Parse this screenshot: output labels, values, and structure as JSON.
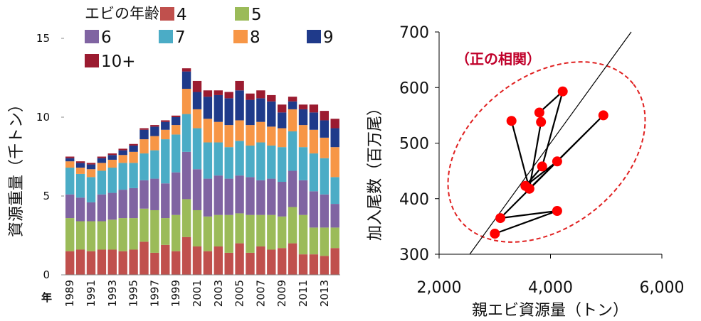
{
  "chart_data": [
    {
      "type": "bar",
      "stacked": true,
      "ylabel": "資源重量（千トン）",
      "xlabel": "年",
      "ylim": [
        0,
        15
      ],
      "yticks": [
        "0",
        "5",
        "10",
        "15"
      ],
      "legend_title": "エビの年齢",
      "categories": [
        "1989",
        "1990",
        "1991",
        "1992",
        "1993",
        "1994",
        "1995",
        "1996",
        "1997",
        "1998",
        "1999",
        "2000",
        "2001",
        "2002",
        "2003",
        "2004",
        "2005",
        "2006",
        "2007",
        "2008",
        "2009",
        "2010",
        "2011",
        "2012",
        "2013",
        "2014"
      ],
      "xtick_labels": [
        "1989",
        "1991",
        "1993",
        "1995",
        "1997",
        "1999",
        "2001",
        "2003",
        "2005",
        "2007",
        "2009",
        "2011",
        "2013"
      ],
      "series": [
        {
          "name": "4",
          "color": "#c0504d",
          "values": [
            1.5,
            1.6,
            1.5,
            1.6,
            1.6,
            1.5,
            1.6,
            2.1,
            1.4,
            1.9,
            1.5,
            2.4,
            1.8,
            1.5,
            1.8,
            1.4,
            2.0,
            1.4,
            1.8,
            1.6,
            1.7,
            2.0,
            1.3,
            1.3,
            1.2,
            1.7
          ]
        },
        {
          "name": "5",
          "color": "#9bbb59",
          "values": [
            2.1,
            1.8,
            1.9,
            1.8,
            1.9,
            2.1,
            2.0,
            2.1,
            2.7,
            1.7,
            2.3,
            2.4,
            2.3,
            2.2,
            2.0,
            2.4,
            1.9,
            2.4,
            2.0,
            2.2,
            2.0,
            2.3,
            2.5,
            1.7,
            1.8,
            1.3
          ]
        },
        {
          "name": "6",
          "color": "#8064a2",
          "values": [
            1.5,
            1.5,
            1.2,
            1.7,
            1.7,
            1.8,
            1.9,
            1.8,
            2.0,
            2.2,
            2.7,
            3.0,
            2.6,
            2.4,
            2.5,
            2.3,
            2.4,
            2.4,
            2.2,
            2.3,
            2.2,
            2.3,
            2.2,
            2.3,
            2.1,
            1.5
          ]
        },
        {
          "name": "7",
          "color": "#4bacc6",
          "values": [
            1.7,
            1.5,
            1.6,
            1.5,
            1.6,
            1.7,
            1.6,
            1.7,
            1.8,
            2.8,
            2.4,
            2.4,
            2.6,
            2.3,
            2.1,
            2.0,
            2.2,
            2.0,
            2.4,
            2.1,
            2.2,
            2.5,
            2.1,
            2.4,
            2.3,
            1.7
          ]
        },
        {
          "name": "8",
          "color": "#f79646",
          "values": [
            0.4,
            0.4,
            0.5,
            0.5,
            0.5,
            0.5,
            0.7,
            0.9,
            0.9,
            0.6,
            0.6,
            1.6,
            1.2,
            1.5,
            1.3,
            1.4,
            1.3,
            1.3,
            1.3,
            1.2,
            1.2,
            1.4,
            1.4,
            1.5,
            1.3,
            1.9
          ]
        },
        {
          "name": "9",
          "color": "#1f3a8a",
          "values": [
            0.2,
            0.3,
            0.3,
            0.3,
            0.3,
            0.3,
            0.4,
            0.6,
            0.6,
            0.5,
            0.5,
            1.1,
            1.1,
            1.4,
            1.7,
            1.7,
            1.9,
            1.6,
            1.5,
            1.6,
            1.0,
            0.5,
            1.0,
            1.1,
            1.1,
            1.2
          ]
        },
        {
          "name": "10+",
          "color": "#9b1b30",
          "values": [
            0.1,
            0.1,
            0.1,
            0.1,
            0.1,
            0.1,
            0.1,
            0.1,
            0.1,
            0.1,
            0.1,
            0.2,
            0.7,
            0.4,
            0.3,
            0.4,
            0.6,
            0.4,
            0.5,
            0.4,
            0.5,
            0.3,
            0.3,
            0.5,
            0.6,
            0.6
          ]
        }
      ]
    },
    {
      "type": "scatter",
      "connected": true,
      "xlabel": "親エビ資源量（トン）",
      "ylabel": "加入尾数（百万尾）",
      "xlim": [
        2000,
        6000
      ],
      "ylim": [
        300,
        700
      ],
      "xticks": [
        "2,000",
        "4,000",
        "6,000"
      ],
      "yticks": [
        "300",
        "400",
        "500",
        "600",
        "700"
      ],
      "annotation": "（正の相関）",
      "point_color": "#ff0000",
      "annotation_color": "#c0002a",
      "points": [
        {
          "x": 3300,
          "y": 540
        },
        {
          "x": 3620,
          "y": 418
        },
        {
          "x": 4120,
          "y": 467
        },
        {
          "x": 3550,
          "y": 423
        },
        {
          "x": 3850,
          "y": 458
        },
        {
          "x": 4220,
          "y": 593
        },
        {
          "x": 3800,
          "y": 555
        },
        {
          "x": 3830,
          "y": 538
        },
        {
          "x": 3620,
          "y": 418
        },
        {
          "x": 4950,
          "y": 550
        },
        {
          "x": 3100,
          "y": 365
        },
        {
          "x": 4120,
          "y": 378
        },
        {
          "x": 3000,
          "y": 337
        }
      ],
      "trend_line": {
        "x": [
          2550,
          5450
        ],
        "y": [
          300,
          700
        ]
      }
    }
  ]
}
